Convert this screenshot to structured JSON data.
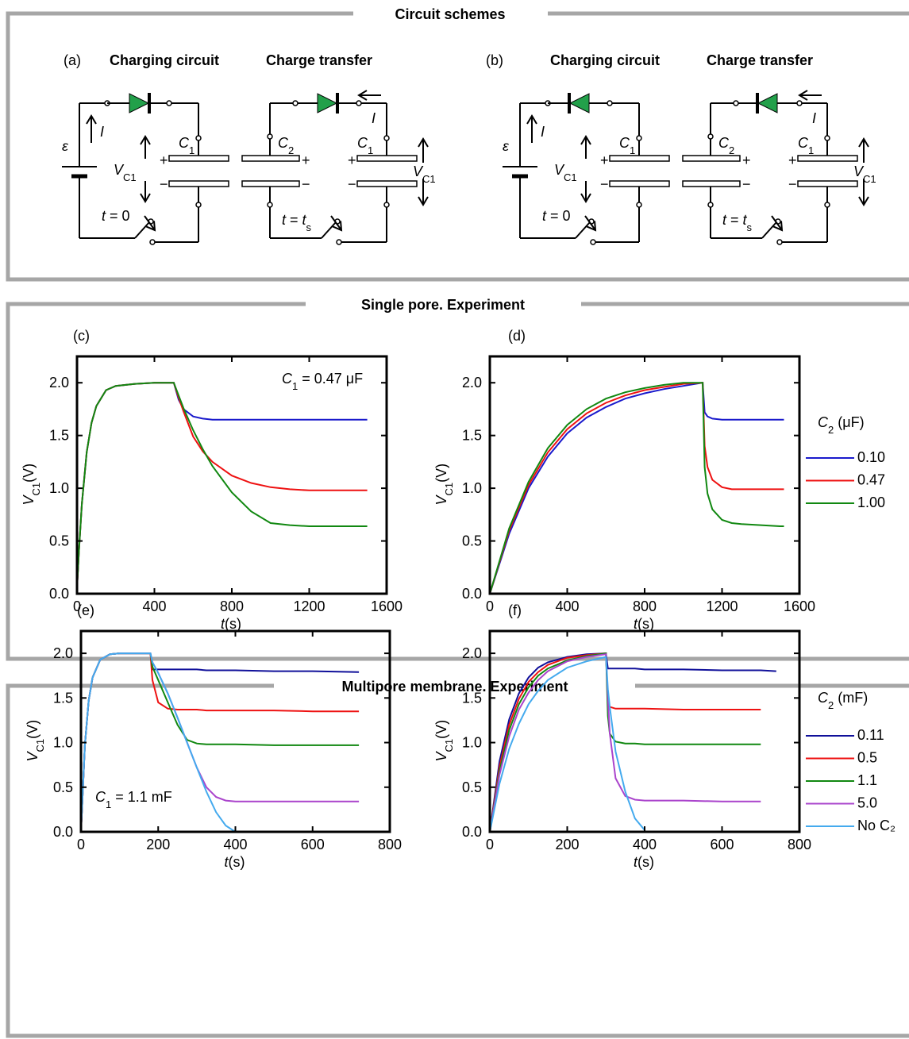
{
  "sections": [
    "Circuit schemes",
    "Single pore. Experiment",
    "Multipore membrane. Experiment"
  ],
  "circuits": [
    {
      "label": "(a)",
      "titles": [
        "Charging circuit",
        "Charge transfer"
      ]
    },
    {
      "label": "(b)",
      "titles": [
        "Charging circuit",
        "Charge transfer"
      ]
    }
  ],
  "symbols": {
    "emf": "ε",
    "current": "I",
    "c": "C",
    "sub1": "1",
    "sub2": "2",
    "v": "V",
    "vsub": "C1",
    "t": "t",
    "eq0": " = 0",
    "eqt": " = ",
    "s": "s",
    "plus": "+",
    "minus": "−"
  },
  "chart_data": [
    {
      "type": "line",
      "label": "(c)",
      "xlabel": [
        "t",
        "(s)"
      ],
      "ylabel": [
        "V",
        "C1",
        "(V)"
      ],
      "annotation": [
        "C",
        "1",
        " = 0.47 μF"
      ],
      "xlim": [
        0,
        1600
      ],
      "ylim": [
        0,
        2.25
      ],
      "xticks": [
        0,
        400,
        800,
        1200,
        1600
      ],
      "yticks": [
        {
          "value": 0,
          "label": "0.0"
        },
        0.5,
        {
          "value": 1,
          "label": "1.0"
        },
        1.5,
        {
          "value": 2,
          "label": "2.0"
        }
      ],
      "x": [
        0,
        10,
        25,
        50,
        75,
        100,
        150,
        200,
        300,
        400,
        500,
        525,
        550,
        600,
        650,
        700,
        800,
        900,
        1000,
        1100,
        1200,
        1300,
        1400,
        1500
      ],
      "series": [
        {
          "color": "#1a1acc",
          "values": [
            0.05,
            0.4,
            0.85,
            1.34,
            1.62,
            1.78,
            1.93,
            1.97,
            1.99,
            2.0,
            2.0,
            1.84,
            1.75,
            1.68,
            1.66,
            1.65,
            1.65,
            1.65,
            1.65,
            1.65,
            1.65,
            1.65,
            1.65,
            1.65
          ]
        },
        {
          "color": "#ee1111",
          "values": [
            0.05,
            0.4,
            0.85,
            1.34,
            1.62,
            1.78,
            1.93,
            1.97,
            1.99,
            2.0,
            2.0,
            1.86,
            1.73,
            1.49,
            1.35,
            1.25,
            1.12,
            1.05,
            1.01,
            0.99,
            0.98,
            0.98,
            0.98,
            0.98
          ]
        },
        {
          "color": "#118811",
          "values": [
            0.05,
            0.4,
            0.85,
            1.34,
            1.62,
            1.78,
            1.93,
            1.97,
            1.99,
            2.0,
            2.0,
            1.88,
            1.76,
            1.55,
            1.37,
            1.21,
            0.96,
            0.78,
            0.67,
            0.65,
            0.64,
            0.64,
            0.64,
            0.64
          ]
        }
      ]
    },
    {
      "type": "line",
      "label": "(d)",
      "xlabel": [
        "t",
        "(s)"
      ],
      "ylabel": [
        "V",
        "C1",
        "(V)"
      ],
      "legend_title": [
        "C",
        "2",
        " (μF)"
      ],
      "xlim": [
        0,
        1600
      ],
      "ylim": [
        0,
        2.25
      ],
      "xticks": [
        0,
        400,
        800,
        1200,
        1600
      ],
      "yticks": [
        {
          "value": 0,
          "label": "0.0"
        },
        0.5,
        {
          "value": 1,
          "label": "1.0"
        },
        1.5,
        {
          "value": 2,
          "label": "2.0"
        }
      ],
      "x": [
        0,
        100,
        200,
        300,
        400,
        500,
        600,
        700,
        800,
        900,
        1000,
        1100,
        1110,
        1125,
        1150,
        1200,
        1250,
        1300,
        1400,
        1500,
        1520
      ],
      "series": [
        {
          "name": "0.10",
          "color": "#1a1acc",
          "values": [
            0,
            0.57,
            1.0,
            1.3,
            1.52,
            1.67,
            1.77,
            1.85,
            1.9,
            1.94,
            1.97,
            2.0,
            1.72,
            1.68,
            1.66,
            1.65,
            1.65,
            1.65,
            1.65,
            1.65,
            1.65
          ]
        },
        {
          "name": "0.47",
          "color": "#ee1111",
          "values": [
            0,
            0.6,
            1.03,
            1.34,
            1.56,
            1.71,
            1.81,
            1.88,
            1.93,
            1.96,
            1.99,
            2.0,
            1.4,
            1.2,
            1.08,
            1.01,
            0.99,
            0.99,
            0.99,
            0.99,
            0.99
          ]
        },
        {
          "name": "1.00",
          "color": "#118811",
          "values": [
            0,
            0.62,
            1.06,
            1.38,
            1.6,
            1.75,
            1.85,
            1.91,
            1.95,
            1.98,
            2.0,
            2.0,
            1.2,
            0.95,
            0.8,
            0.7,
            0.67,
            0.66,
            0.65,
            0.64,
            0.64
          ]
        }
      ]
    },
    {
      "type": "line",
      "label": "(e)",
      "xlabel": [
        "t",
        "(s)"
      ],
      "ylabel": [
        "V",
        "C1",
        "(V)"
      ],
      "annotation": [
        "C",
        "1",
        " = 1.1 mF"
      ],
      "xlim": [
        0,
        800
      ],
      "ylim": [
        0,
        2.25
      ],
      "xticks": [
        0,
        200,
        400,
        600,
        800
      ],
      "yticks": [
        {
          "value": 0,
          "label": "0.0"
        },
        0.5,
        {
          "value": 1,
          "label": "1.0"
        },
        1.5,
        {
          "value": 2,
          "label": "2.0"
        }
      ],
      "x": [
        0,
        10,
        20,
        30,
        50,
        75,
        100,
        150,
        180,
        185,
        200,
        225,
        250,
        275,
        300,
        325,
        350,
        375,
        400,
        500,
        600,
        720
      ],
      "series": [
        {
          "color": "#10109a",
          "values": [
            0,
            0.97,
            1.47,
            1.73,
            1.93,
            1.99,
            2.0,
            2.0,
            2.0,
            1.82,
            1.82,
            1.82,
            1.82,
            1.82,
            1.82,
            1.81,
            1.81,
            1.81,
            1.81,
            1.8,
            1.8,
            1.79
          ]
        },
        {
          "color": "#ee1111",
          "values": [
            0,
            0.97,
            1.47,
            1.73,
            1.93,
            1.99,
            2.0,
            2.0,
            2.0,
            1.7,
            1.45,
            1.38,
            1.37,
            1.37,
            1.37,
            1.36,
            1.36,
            1.36,
            1.36,
            1.36,
            1.35,
            1.35
          ]
        },
        {
          "color": "#118811",
          "values": [
            0,
            0.97,
            1.47,
            1.73,
            1.93,
            1.99,
            2.0,
            2.0,
            2.0,
            1.85,
            1.7,
            1.45,
            1.2,
            1.03,
            0.99,
            0.98,
            0.98,
            0.98,
            0.98,
            0.97,
            0.97,
            0.97
          ]
        },
        {
          "color": "#aa44cc",
          "values": [
            0,
            0.97,
            1.47,
            1.73,
            1.93,
            1.99,
            2.0,
            2.0,
            2.0,
            1.9,
            1.78,
            1.55,
            1.28,
            1.0,
            0.72,
            0.5,
            0.39,
            0.35,
            0.34,
            0.34,
            0.34,
            0.34
          ]
        },
        {
          "color": "#44aaee",
          "values": [
            0,
            0.97,
            1.47,
            1.73,
            1.93,
            1.99,
            2.0,
            2.0,
            2.0,
            1.9,
            1.78,
            1.55,
            1.28,
            1.0,
            0.72,
            0.45,
            0.22,
            0.07,
            0.0,
            null,
            null,
            null
          ]
        }
      ]
    },
    {
      "type": "line",
      "label": "(f)",
      "xlabel": [
        "t",
        "(s)"
      ],
      "ylabel": [
        "V",
        "C1",
        "(V)"
      ],
      "legend_title": [
        "C",
        "2",
        " (mF)"
      ],
      "xlim": [
        0,
        800
      ],
      "ylim": [
        0,
        2.25
      ],
      "xticks": [
        0,
        200,
        400,
        600,
        800
      ],
      "yticks": [
        {
          "value": 0,
          "label": "0.0"
        },
        0.5,
        {
          "value": 1,
          "label": "1.0"
        },
        1.5,
        {
          "value": 2,
          "label": "2.0"
        }
      ],
      "x": [
        0,
        25,
        50,
        75,
        100,
        125,
        150,
        200,
        250,
        300,
        305,
        310,
        325,
        350,
        375,
        400,
        500,
        600,
        700,
        740
      ],
      "series": [
        {
          "name": "0.11",
          "color": "#10109a",
          "values": [
            0,
            0.79,
            1.26,
            1.55,
            1.73,
            1.84,
            1.9,
            1.96,
            1.99,
            2.0,
            1.83,
            1.83,
            1.83,
            1.83,
            1.83,
            1.82,
            1.82,
            1.81,
            1.81,
            1.8
          ]
        },
        {
          "name": "0.5",
          "color": "#ee1111",
          "values": [
            0,
            0.73,
            1.2,
            1.49,
            1.68,
            1.79,
            1.87,
            1.95,
            1.98,
            2.0,
            1.45,
            1.4,
            1.38,
            1.38,
            1.38,
            1.38,
            1.37,
            1.37,
            1.37,
            null
          ]
        },
        {
          "name": "1.1",
          "color": "#118811",
          "values": [
            0,
            0.68,
            1.14,
            1.43,
            1.62,
            1.75,
            1.83,
            1.92,
            1.97,
            2.0,
            1.3,
            1.1,
            1.01,
            0.99,
            0.99,
            0.98,
            0.98,
            0.98,
            0.98,
            null
          ]
        },
        {
          "name": "5.0",
          "color": "#aa44cc",
          "values": [
            0,
            0.64,
            1.07,
            1.37,
            1.56,
            1.7,
            1.8,
            1.91,
            1.96,
            1.99,
            1.5,
            1.1,
            0.6,
            0.4,
            0.36,
            0.35,
            0.35,
            0.34,
            0.34,
            null
          ]
        },
        {
          "name": "No C₂",
          "color": "#44aaee",
          "values": [
            0,
            0.54,
            0.93,
            1.21,
            1.43,
            1.58,
            1.7,
            1.84,
            1.91,
            1.96,
            1.6,
            1.4,
            0.9,
            0.45,
            0.15,
            0.02,
            null,
            null,
            null,
            null
          ]
        }
      ]
    }
  ]
}
